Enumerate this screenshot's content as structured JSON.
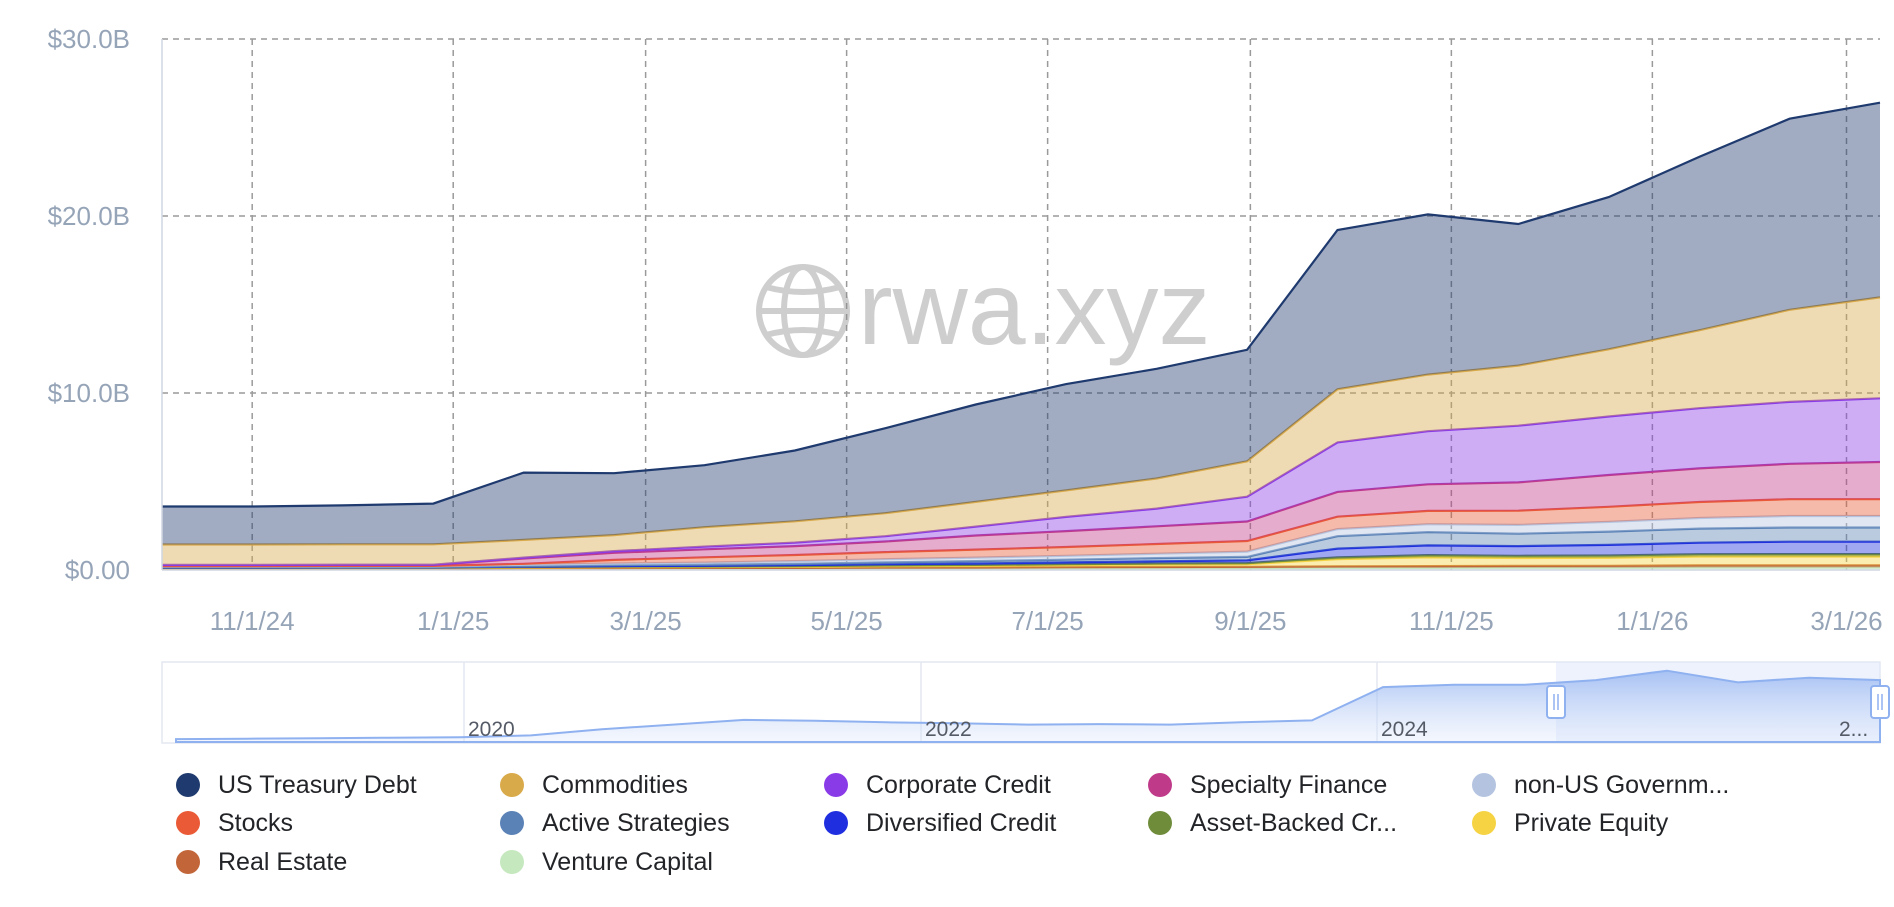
{
  "chart_data": {
    "type": "area",
    "stacked": true,
    "title": "",
    "xlabel": "",
    "ylabel": "",
    "ylim": [
      0,
      30
    ],
    "y_unit": "billions USD",
    "y_ticks": [
      {
        "value": 0,
        "label": "$0.00"
      },
      {
        "value": 10,
        "label": "$10.0B"
      },
      {
        "value": 20,
        "label": "$20.0B"
      },
      {
        "value": 30,
        "label": "$30.0B"
      }
    ],
    "x_ticks": [
      "11/1/24",
      "1/1/25",
      "3/1/25",
      "5/1/25",
      "7/1/25",
      "9/1/25",
      "11/1/25",
      "1/1/26",
      "3/1/26"
    ],
    "grid": true,
    "x": [
      "9/1/24",
      "10/1/24",
      "11/1/24",
      "12/1/24",
      "1/1/25",
      "2/1/25",
      "3/1/25",
      "4/1/25",
      "5/1/25",
      "6/1/25",
      "7/1/25",
      "8/1/25",
      "9/1/25",
      "10/1/25",
      "11/1/25",
      "12/1/25",
      "1/1/26",
      "2/1/26",
      "3/1/26",
      "3/8/26"
    ],
    "series": [
      {
        "name": "Venture Capital",
        "color": "#c6e8bf",
        "values": [
          0.05,
          0.05,
          0.05,
          0.05,
          0.06,
          0.06,
          0.07,
          0.07,
          0.08,
          0.08,
          0.09,
          0.1,
          0.1,
          0.12,
          0.12,
          0.13,
          0.13,
          0.14,
          0.14,
          0.14
        ]
      },
      {
        "name": "Real Estate",
        "color": "#c2663a",
        "values": [
          0.03,
          0.03,
          0.03,
          0.03,
          0.04,
          0.05,
          0.05,
          0.05,
          0.06,
          0.06,
          0.07,
          0.07,
          0.08,
          0.09,
          0.1,
          0.1,
          0.11,
          0.12,
          0.12,
          0.12
        ]
      },
      {
        "name": "Private Equity",
        "color": "#f5d342",
        "values": [
          0.02,
          0.02,
          0.03,
          0.03,
          0.04,
          0.05,
          0.05,
          0.06,
          0.08,
          0.1,
          0.12,
          0.14,
          0.15,
          0.4,
          0.5,
          0.45,
          0.45,
          0.5,
          0.5,
          0.5
        ]
      },
      {
        "name": "Asset-Backed Credit",
        "color": "#6f8c3a",
        "values": [
          0.02,
          0.02,
          0.02,
          0.02,
          0.03,
          0.03,
          0.03,
          0.04,
          0.04,
          0.05,
          0.05,
          0.06,
          0.06,
          0.1,
          0.12,
          0.12,
          0.13,
          0.13,
          0.14,
          0.14
        ]
      },
      {
        "name": "Diversified Credit",
        "color": "#1f2fe0",
        "values": [
          0.01,
          0.01,
          0.01,
          0.01,
          0.02,
          0.03,
          0.04,
          0.05,
          0.07,
          0.08,
          0.1,
          0.12,
          0.15,
          0.5,
          0.55,
          0.55,
          0.6,
          0.65,
          0.7,
          0.7
        ]
      },
      {
        "name": "Active Strategies",
        "color": "#5a82b6",
        "values": [
          0.02,
          0.02,
          0.02,
          0.02,
          0.03,
          0.05,
          0.06,
          0.08,
          0.1,
          0.13,
          0.15,
          0.18,
          0.2,
          0.7,
          0.75,
          0.7,
          0.75,
          0.8,
          0.8,
          0.8
        ]
      },
      {
        "name": "non-US Government Debt",
        "color": "#b4c4e0",
        "values": [
          0.05,
          0.05,
          0.05,
          0.05,
          0.08,
          0.1,
          0.12,
          0.15,
          0.18,
          0.2,
          0.22,
          0.25,
          0.3,
          0.4,
          0.45,
          0.5,
          0.55,
          0.6,
          0.65,
          0.65
        ]
      },
      {
        "name": "Stocks",
        "color": "#ea5a36",
        "values": [
          0.02,
          0.02,
          0.02,
          0.02,
          0.05,
          0.2,
          0.3,
          0.35,
          0.4,
          0.45,
          0.5,
          0.55,
          0.6,
          0.7,
          0.75,
          0.8,
          0.85,
          0.9,
          0.95,
          0.95
        ]
      },
      {
        "name": "Specialty Finance",
        "color": "#c03a8a",
        "values": [
          0.05,
          0.05,
          0.05,
          0.05,
          0.3,
          0.4,
          0.45,
          0.5,
          0.6,
          0.8,
          0.9,
          1.0,
          1.1,
          1.4,
          1.5,
          1.6,
          1.8,
          1.9,
          2.0,
          2.1
        ]
      },
      {
        "name": "Corporate Credit",
        "color": "#8a3be8",
        "values": [
          0.02,
          0.02,
          0.02,
          0.02,
          0.05,
          0.1,
          0.15,
          0.2,
          0.3,
          0.5,
          0.8,
          1.0,
          1.4,
          2.8,
          3.0,
          3.2,
          3.3,
          3.4,
          3.5,
          3.6
        ]
      },
      {
        "name": "Commodities",
        "color": "#d9aa4a",
        "values": [
          1.15,
          1.15,
          1.15,
          1.15,
          1.0,
          0.9,
          1.1,
          1.2,
          1.3,
          1.4,
          1.5,
          1.7,
          2.0,
          3.0,
          3.2,
          3.4,
          3.8,
          4.4,
          5.2,
          5.7
        ]
      },
      {
        "name": "US Treasury Debt",
        "color": "#1f3a6e",
        "values": [
          2.15,
          2.15,
          2.2,
          2.3,
          3.8,
          3.5,
          3.5,
          4.0,
          4.8,
          5.5,
          6.0,
          6.2,
          6.3,
          9.0,
          9.05,
          8.0,
          8.6,
          9.8,
          10.8,
          11.0
        ]
      }
    ],
    "navigator": {
      "labels": [
        "2020",
        "2022",
        "2024",
        "2..."
      ],
      "selected_range": [
        "9/1/24",
        "3/8/26"
      ]
    },
    "watermark": "rwa.xyz"
  },
  "legend": {
    "items": [
      {
        "label": "US Treasury Debt",
        "color": "#1f3a6e"
      },
      {
        "label": "Commodities",
        "color": "#d9aa4a"
      },
      {
        "label": "Corporate Credit",
        "color": "#8a3be8"
      },
      {
        "label": "Specialty Finance",
        "color": "#c03a8a"
      },
      {
        "label": "non-US Governm...",
        "color": "#b4c4e0"
      },
      {
        "label": "Stocks",
        "color": "#ea5a36"
      },
      {
        "label": "Active Strategies",
        "color": "#5a82b6"
      },
      {
        "label": "Diversified Credit",
        "color": "#1f2fe0"
      },
      {
        "label": "Asset-Backed Cr...",
        "color": "#6f8c3a"
      },
      {
        "label": "Private Equity",
        "color": "#f5d342"
      },
      {
        "label": "Real Estate",
        "color": "#c2663a"
      },
      {
        "label": "Venture Capital",
        "color": "#c6e8bf"
      }
    ]
  }
}
